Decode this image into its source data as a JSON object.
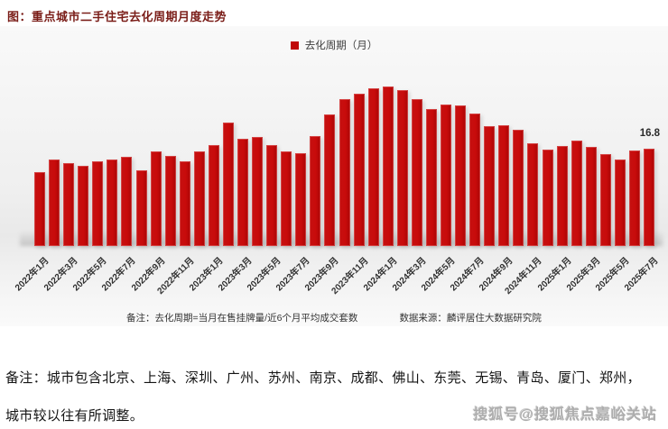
{
  "title": "图：重点城市二手住宅去化周期月度走势",
  "legend": {
    "label": "去化周期（月）",
    "color": "#c00808"
  },
  "footnote": {
    "note": "备注：去化周期=当月在售挂牌量/近6个月平均成交套数",
    "source": "数据来源：麟评居住大数据研究院"
  },
  "footer": {
    "line1": "备注：城市包含北京、上海、深圳、广州、苏州、南京、成都、佛山、东莞、无锡、青岛、厦门、郑州，",
    "line2": "城市较以往有所调整。",
    "watermark": "搜狐号@搜狐焦点嘉峪关站"
  },
  "chart_data": {
    "type": "bar",
    "title": "重点城市二手住宅去化周期月度走势",
    "ylabel": "去化周期（月）",
    "xlabel": "",
    "unit": "月",
    "grid": false,
    "legend_entries": [
      "去化周期（月）"
    ],
    "legend_position": "top-center",
    "bar_color": "#c00808",
    "ylim": [
      0,
      30
    ],
    "last_value_label": "16.8",
    "categories": [
      "2022年1月",
      "2022年2月",
      "2022年3月",
      "2022年4月",
      "2022年5月",
      "2022年6月",
      "2022年7月",
      "2022年8月",
      "2022年9月",
      "2022年10月",
      "2022年11月",
      "2022年12月",
      "2023年1月",
      "2023年2月",
      "2023年3月",
      "2023年4月",
      "2023年5月",
      "2023年6月",
      "2023年7月",
      "2023年8月",
      "2023年9月",
      "2023年10月",
      "2023年11月",
      "2023年12月",
      "2024年1月",
      "2024年2月",
      "2024年3月",
      "2024年4月",
      "2024年5月",
      "2024年6月",
      "2024年7月",
      "2024年8月",
      "2024年9月",
      "2024年10月",
      "2024年11月",
      "2024年12月",
      "2025年1月",
      "2025年2月",
      "2025年3月",
      "2025年4月",
      "2025年5月",
      "2025年6月",
      "2025年7月"
    ],
    "values": [
      12.8,
      15.0,
      14.3,
      13.8,
      14.6,
      14.9,
      15.4,
      13.1,
      16.4,
      15.6,
      14.7,
      16.4,
      17.4,
      21.3,
      18.5,
      18.9,
      17.5,
      16.4,
      16.1,
      19.0,
      22.7,
      25.3,
      26.3,
      27.2,
      27.6,
      26.9,
      25.3,
      23.6,
      24.4,
      24.2,
      22.9,
      20.7,
      20.8,
      20.1,
      17.7,
      16.6,
      17.2,
      18.2,
      17.1,
      15.8,
      14.9,
      16.5,
      16.8
    ],
    "x_tick_labels": [
      "2022年1月",
      "2022年3月",
      "2022年5月",
      "2022年7月",
      "2022年9月",
      "2022年11月",
      "2023年1月",
      "2023年3月",
      "2023年5月",
      "2023年7月",
      "2023年9月",
      "2023年11月",
      "2024年1月",
      "2024年3月",
      "2024年5月",
      "2024年7月",
      "2024年9月",
      "2024年11月",
      "2025年1月",
      "2025年3月",
      "2025年5月",
      "2025年7月"
    ]
  }
}
